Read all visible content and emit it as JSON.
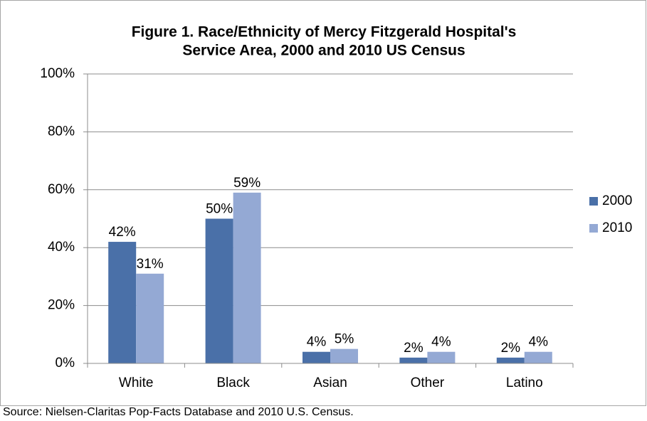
{
  "chart_data": {
    "type": "bar",
    "title": [
      "Figure 1. Race/Ethnicity of Mercy Fitzgerald Hospital's",
      "Service Area, 2000 and 2010 US Census"
    ],
    "categories": [
      "White",
      "Black",
      "Asian",
      "Other",
      "Latino"
    ],
    "series": [
      {
        "name": "2000",
        "color": "#4a70a8",
        "values": [
          42,
          50,
          4,
          2,
          2
        ],
        "value_labels": [
          "42%",
          "50%",
          "4%",
          "2%",
          "2%"
        ]
      },
      {
        "name": "2010",
        "color": "#94a9d4",
        "values": [
          31,
          59,
          5,
          4,
          4
        ],
        "value_labels": [
          "31%",
          "59%",
          "5%",
          "4%",
          "4%"
        ]
      }
    ],
    "ylim": [
      0,
      100
    ],
    "yticks": [
      {
        "value": 0,
        "label": "0%"
      },
      {
        "value": 20,
        "label": "20%"
      },
      {
        "value": 40,
        "label": "40%"
      },
      {
        "value": 60,
        "label": "60%"
      },
      {
        "value": 80,
        "label": "80%"
      },
      {
        "value": 100,
        "label": "100%"
      }
    ],
    "grid": true,
    "legend": "right",
    "source": "Source: Nielsen-Claritas Pop-Facts Database and 2010 U.S. Census."
  }
}
